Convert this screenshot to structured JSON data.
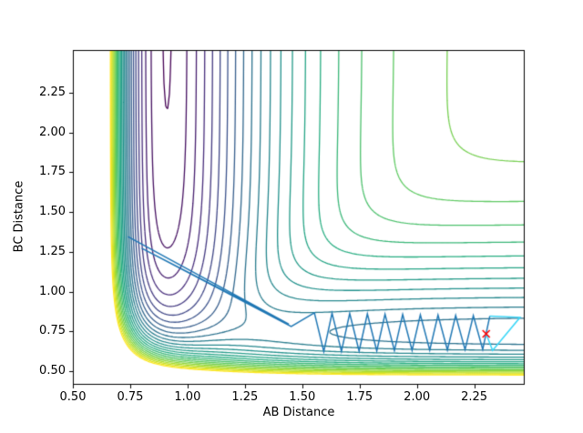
{
  "figure": {
    "background": "#ffffff"
  },
  "chart_data": {
    "type": "contour",
    "title": "",
    "xlabel": "AB Distance",
    "ylabel": "BC Distance",
    "xlim": [
      0.5,
      2.47
    ],
    "ylim": [
      0.414,
      2.518
    ],
    "xtick_labels": [
      "0.50",
      "0.75",
      "1.00",
      "1.25",
      "1.50",
      "1.75",
      "2.00",
      "2.25"
    ],
    "ytick_labels": [
      "0.50",
      "0.75",
      "1.00",
      "1.25",
      "1.50",
      "1.75",
      "2.00",
      "2.25"
    ],
    "grid": false,
    "legend": "none",
    "contours": {
      "model": "LEPS-potential-energy-surface",
      "description": "Collinear A-B-C reaction potential: deep reactant valley along AB distance near 0.91 (vertical channel), product valley along BC distance near 0.74 (horizontal channel), steep repulsive walls at small distances, barrier/elbow near (1.4, 0.8)",
      "params": {
        "a": 0.05,
        "b": 0.8,
        "c": 0.05,
        "dAB": 4.746,
        "dBC": 4.746,
        "dAC": 3.445,
        "r0AB": 0.91,
        "r0BC": 0.74,
        "r0AC": 0.74,
        "alphaAB": 3.0,
        "alphaBC": 2.9,
        "alphaAC": 2.0
      },
      "levels": {
        "min": -4.5,
        "max": 0.9,
        "count": 25
      },
      "colormap": "viridis",
      "colormap_stops": [
        "#440154",
        "#472d7b",
        "#3b528b",
        "#2c728e",
        "#21918c",
        "#27ad81",
        "#5ec962",
        "#aadc32",
        "#fde725"
      ]
    },
    "trajectory": {
      "description": "optimization path from reactant valley over the elbow into the product valley",
      "color": "#1f77b4",
      "points": [
        [
          0.74,
          1.345
        ],
        [
          1.442,
          0.795
        ],
        [
          0.8,
          1.272
        ],
        [
          1.452,
          0.78
        ],
        [
          1.553,
          0.866
        ],
        [
          1.594,
          0.623
        ],
        [
          1.63,
          0.864
        ],
        [
          1.671,
          0.624
        ],
        [
          1.707,
          0.862
        ],
        [
          1.748,
          0.626
        ],
        [
          1.784,
          0.86
        ],
        [
          1.825,
          0.627
        ],
        [
          1.861,
          0.858
        ],
        [
          1.902,
          0.629
        ],
        [
          1.938,
          0.856
        ],
        [
          1.979,
          0.63
        ],
        [
          2.015,
          0.854
        ],
        [
          2.056,
          0.632
        ],
        [
          2.092,
          0.852
        ],
        [
          2.133,
          0.633
        ],
        [
          2.169,
          0.85
        ],
        [
          2.21,
          0.635
        ],
        [
          2.246,
          0.848
        ],
        [
          2.287,
          0.636
        ],
        [
          2.318,
          0.846
        ]
      ],
      "final_segment_color": "#3ad6f7",
      "final_segment": [
        [
          2.318,
          0.846
        ],
        [
          2.45,
          0.838
        ],
        [
          2.33,
          0.63
        ],
        [
          2.302,
          0.734
        ]
      ],
      "minimum_marker": {
        "x": 2.302,
        "y": 0.734,
        "color": "#ff0000",
        "symbol": "x"
      }
    }
  }
}
